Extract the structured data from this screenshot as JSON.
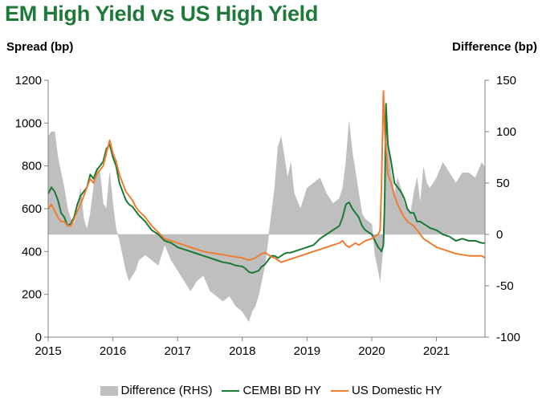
{
  "chart_data": {
    "type": "line",
    "title": "EM High Yield vs US High Yield",
    "ylabel_left": "Spread (bp)",
    "ylabel_right": "Difference (bp)",
    "ylim_left": [
      0,
      1200
    ],
    "ylim_right": [
      -100,
      150
    ],
    "left_ticks": [
      "0",
      "200",
      "400",
      "600",
      "800",
      "1000",
      "1200"
    ],
    "right_ticks": [
      "-100",
      "-50",
      "0",
      "50",
      "100",
      "150"
    ],
    "xlim": [
      2015.0,
      2021.75
    ],
    "x_ticks": [
      "2015",
      "2016",
      "2017",
      "2018",
      "2019",
      "2020",
      "2021"
    ],
    "legend_position": "bottom",
    "series": [
      {
        "name": "Difference (RHS)",
        "type": "area",
        "axis": "right",
        "color": "#bfbfbf",
        "x": [
          2015.0,
          2015.05,
          2015.1,
          2015.15,
          2015.2,
          2015.25,
          2015.3,
          2015.35,
          2015.4,
          2015.45,
          2015.5,
          2015.55,
          2015.6,
          2015.65,
          2015.7,
          2015.75,
          2015.8,
          2015.85,
          2015.9,
          2015.95,
          2016.0,
          2016.05,
          2016.1,
          2016.15,
          2016.2,
          2016.25,
          2016.3,
          2016.35,
          2016.4,
          2016.5,
          2016.6,
          2016.7,
          2016.8,
          2016.9,
          2017.0,
          2017.1,
          2017.2,
          2017.3,
          2017.4,
          2017.5,
          2017.6,
          2017.7,
          2017.8,
          2017.9,
          2018.0,
          2018.05,
          2018.1,
          2018.15,
          2018.2,
          2018.25,
          2018.3,
          2018.35,
          2018.4,
          2018.45,
          2018.5,
          2018.55,
          2018.6,
          2018.65,
          2018.7,
          2018.75,
          2018.8,
          2018.9,
          2019.0,
          2019.1,
          2019.2,
          2019.3,
          2019.4,
          2019.5,
          2019.55,
          2019.6,
          2019.65,
          2019.7,
          2019.75,
          2019.8,
          2019.85,
          2019.9,
          2020.0,
          2020.05,
          2020.1,
          2020.13,
          2020.15,
          2020.18,
          2020.2,
          2020.22,
          2020.25,
          2020.3,
          2020.35,
          2020.4,
          2020.45,
          2020.5,
          2020.55,
          2020.6,
          2020.65,
          2020.7,
          2020.75,
          2020.8,
          2020.85,
          2020.9,
          2021.0,
          2021.1,
          2021.2,
          2021.3,
          2021.4,
          2021.5,
          2021.6,
          2021.7,
          2021.75
        ],
        "values": [
          95,
          100,
          100,
          75,
          60,
          45,
          25,
          15,
          10,
          20,
          45,
          15,
          5,
          20,
          45,
          65,
          60,
          30,
          25,
          60,
          30,
          5,
          -5,
          -20,
          -35,
          -45,
          -40,
          -35,
          -25,
          -20,
          -25,
          -30,
          -10,
          -25,
          -35,
          -45,
          -55,
          -45,
          -40,
          -55,
          -60,
          -65,
          -60,
          -70,
          -75,
          -80,
          -85,
          -75,
          -70,
          -60,
          -45,
          -30,
          -5,
          20,
          45,
          85,
          95,
          75,
          55,
          70,
          40,
          25,
          45,
          50,
          55,
          40,
          30,
          35,
          45,
          70,
          110,
          80,
          60,
          40,
          20,
          15,
          10,
          -20,
          -35,
          -45,
          -30,
          -10,
          5,
          120,
          90,
          60,
          40,
          55,
          45,
          30,
          25,
          20,
          40,
          55,
          30,
          65,
          50,
          45,
          55,
          70,
          60,
          50,
          60,
          60,
          55,
          70,
          65
        ],
        "label_draw": false
      },
      {
        "name": "CEMBI BD HY",
        "type": "line",
        "axis": "left",
        "color": "#1a7a35",
        "x": [
          2015.0,
          2015.05,
          2015.1,
          2015.15,
          2015.2,
          2015.25,
          2015.3,
          2015.35,
          2015.4,
          2015.45,
          2015.5,
          2015.55,
          2015.6,
          2015.65,
          2015.7,
          2015.75,
          2015.8,
          2015.85,
          2015.9,
          2015.95,
          2016.0,
          2016.05,
          2016.1,
          2016.15,
          2016.2,
          2016.25,
          2016.3,
          2016.35,
          2016.4,
          2016.5,
          2016.6,
          2016.7,
          2016.8,
          2016.9,
          2017.0,
          2017.1,
          2017.2,
          2017.3,
          2017.4,
          2017.5,
          2017.6,
          2017.7,
          2017.8,
          2017.9,
          2018.0,
          2018.05,
          2018.1,
          2018.15,
          2018.2,
          2018.25,
          2018.3,
          2018.35,
          2018.4,
          2018.45,
          2018.5,
          2018.55,
          2018.6,
          2018.65,
          2018.7,
          2018.75,
          2018.8,
          2018.9,
          2019.0,
          2019.1,
          2019.2,
          2019.3,
          2019.4,
          2019.5,
          2019.55,
          2019.6,
          2019.65,
          2019.7,
          2019.75,
          2019.8,
          2019.85,
          2019.9,
          2020.0,
          2020.05,
          2020.1,
          2020.13,
          2020.15,
          2020.18,
          2020.2,
          2020.22,
          2020.25,
          2020.3,
          2020.35,
          2020.4,
          2020.45,
          2020.5,
          2020.55,
          2020.6,
          2020.65,
          2020.7,
          2020.75,
          2020.8,
          2020.85,
          2020.9,
          2021.0,
          2021.1,
          2021.2,
          2021.3,
          2021.4,
          2021.5,
          2021.6,
          2021.7,
          2021.75
        ],
        "values": [
          670,
          700,
          680,
          640,
          580,
          560,
          520,
          530,
          560,
          620,
          660,
          680,
          700,
          760,
          740,
          780,
          800,
          820,
          880,
          900,
          840,
          800,
          720,
          680,
          640,
          620,
          610,
          590,
          570,
          540,
          500,
          480,
          450,
          440,
          420,
          410,
          400,
          390,
          380,
          370,
          360,
          350,
          345,
          335,
          330,
          320,
          305,
          300,
          305,
          310,
          330,
          340,
          360,
          380,
          380,
          370,
          380,
          390,
          395,
          395,
          400,
          410,
          420,
          430,
          460,
          480,
          500,
          520,
          560,
          620,
          630,
          600,
          580,
          560,
          520,
          500,
          480,
          450,
          420,
          410,
          400,
          430,
          640,
          1090,
          900,
          820,
          720,
          700,
          680,
          650,
          600,
          580,
          580,
          540,
          540,
          530,
          520,
          510,
          500,
          480,
          470,
          450,
          460,
          450,
          450,
          440,
          440
        ],
        "label_draw": false
      },
      {
        "name": "US Domestic HY",
        "type": "line",
        "axis": "left",
        "color": "#ed7d31",
        "x": [
          2015.0,
          2015.05,
          2015.1,
          2015.15,
          2015.2,
          2015.25,
          2015.3,
          2015.35,
          2015.4,
          2015.45,
          2015.5,
          2015.55,
          2015.6,
          2015.65,
          2015.7,
          2015.75,
          2015.8,
          2015.85,
          2015.9,
          2015.95,
          2016.0,
          2016.05,
          2016.1,
          2016.15,
          2016.2,
          2016.25,
          2016.3,
          2016.35,
          2016.4,
          2016.5,
          2016.6,
          2016.7,
          2016.8,
          2016.9,
          2017.0,
          2017.1,
          2017.2,
          2017.3,
          2017.4,
          2017.5,
          2017.6,
          2017.7,
          2017.8,
          2017.9,
          2018.0,
          2018.05,
          2018.1,
          2018.15,
          2018.2,
          2018.25,
          2018.3,
          2018.35,
          2018.4,
          2018.45,
          2018.5,
          2018.55,
          2018.6,
          2018.65,
          2018.7,
          2018.75,
          2018.8,
          2018.9,
          2019.0,
          2019.1,
          2019.2,
          2019.3,
          2019.4,
          2019.5,
          2019.55,
          2019.6,
          2019.65,
          2019.7,
          2019.75,
          2019.8,
          2019.85,
          2019.9,
          2020.0,
          2020.05,
          2020.1,
          2020.13,
          2020.15,
          2020.18,
          2020.2,
          2020.22,
          2020.25,
          2020.3,
          2020.35,
          2020.4,
          2020.45,
          2020.5,
          2020.55,
          2020.6,
          2020.65,
          2020.7,
          2020.75,
          2020.8,
          2020.85,
          2020.9,
          2021.0,
          2021.1,
          2021.2,
          2021.3,
          2021.4,
          2021.5,
          2021.6,
          2021.7,
          2021.75
        ],
        "values": [
          600,
          620,
          590,
          560,
          540,
          540,
          520,
          520,
          550,
          590,
          620,
          660,
          700,
          740,
          720,
          760,
          780,
          800,
          860,
          920,
          860,
          820,
          760,
          720,
          680,
          660,
          640,
          610,
          590,
          560,
          520,
          490,
          460,
          450,
          440,
          430,
          420,
          410,
          400,
          395,
          390,
          385,
          380,
          375,
          370,
          365,
          360,
          365,
          370,
          380,
          390,
          395,
          385,
          375,
          370,
          360,
          350,
          355,
          360,
          365,
          370,
          380,
          390,
          400,
          410,
          420,
          430,
          440,
          450,
          430,
          420,
          430,
          440,
          430,
          440,
          450,
          460,
          470,
          480,
          500,
          700,
          1150,
          960,
          880,
          760,
          720,
          660,
          620,
          590,
          560,
          540,
          530,
          520,
          500,
          480,
          460,
          450,
          440,
          420,
          410,
          400,
          390,
          385,
          380,
          380,
          380,
          370
        ],
        "label_draw": false
      }
    ],
    "legend": [
      "Difference (RHS)",
      "CEMBI BD HY",
      "US Domestic HY"
    ]
  }
}
